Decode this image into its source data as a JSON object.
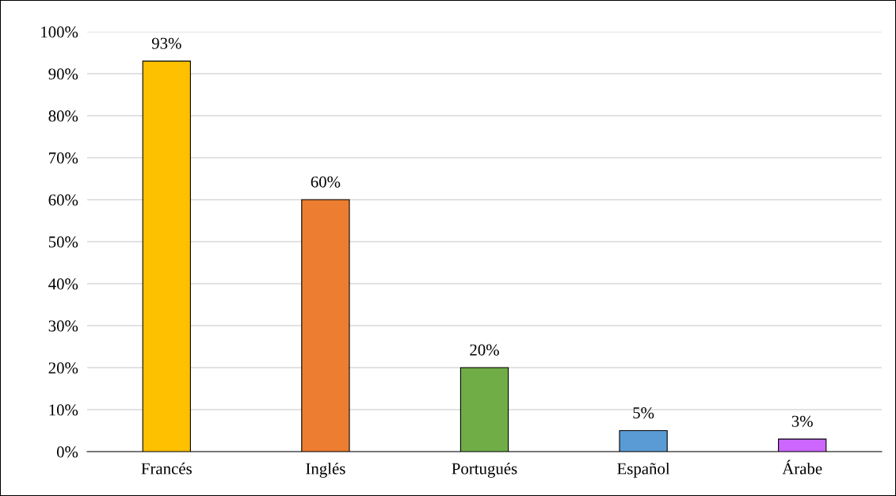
{
  "chart_data": {
    "type": "bar",
    "categories": [
      "Francés",
      "Inglés",
      "Portugués",
      "Español",
      "Árabe"
    ],
    "values": [
      93,
      60,
      20,
      5,
      3
    ],
    "colors": [
      "#ffc000",
      "#ed7d31",
      "#70ad47",
      "#5b9bd5",
      "#cc66ff"
    ],
    "value_labels": [
      "93%",
      "60%",
      "20%",
      "5%",
      "3%"
    ],
    "ylim": [
      0,
      100
    ],
    "yticks": [
      {
        "value": 0,
        "label": "0%"
      },
      {
        "value": 10,
        "label": "10%"
      },
      {
        "value": 20,
        "label": "20%"
      },
      {
        "value": 30,
        "label": "30%"
      },
      {
        "value": 40,
        "label": "40%"
      },
      {
        "value": 50,
        "label": "50%"
      },
      {
        "value": 60,
        "label": "60%"
      },
      {
        "value": 70,
        "label": "70%"
      },
      {
        "value": 80,
        "label": "80%"
      },
      {
        "value": 90,
        "label": "90%"
      },
      {
        "value": 100,
        "label": "100%"
      }
    ],
    "grid": "y",
    "legend": false
  }
}
